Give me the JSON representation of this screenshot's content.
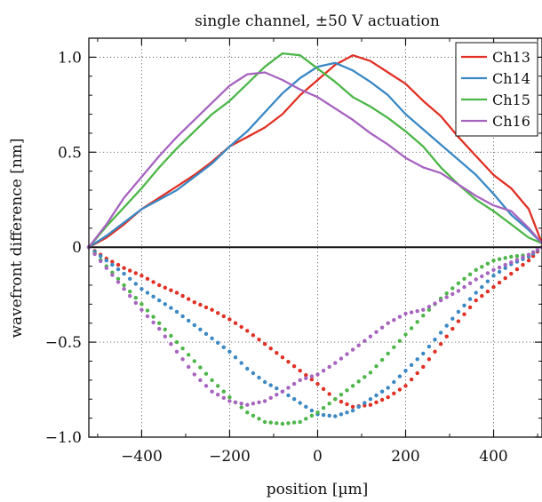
{
  "chart_data": {
    "type": "line",
    "title": "single channel, ±50 V actuation",
    "xlabel": "position [µm]",
    "ylabel": "wavefront difference [nm]",
    "xlim": [
      -520,
      510
    ],
    "ylim": [
      -1.0,
      1.1
    ],
    "xticks": [
      -400,
      -200,
      0,
      200,
      400
    ],
    "xtick_labels": [
      "−400",
      "−200",
      "0",
      "200",
      "400"
    ],
    "yticks": [
      1.0,
      0.5,
      0,
      -0.5,
      -1.0
    ],
    "ytick_labels": [
      "1.0",
      "0.5",
      "0",
      "−0.5",
      "−1.0"
    ],
    "grid": true,
    "legend_position": "top-right",
    "series": [
      {
        "name": "Ch13",
        "color": "#e03024",
        "style": "solid",
        "x": [
          -520,
          -480,
          -440,
          -400,
          -360,
          -320,
          -280,
          -240,
          -200,
          -160,
          -120,
          -80,
          -40,
          0,
          40,
          80,
          120,
          160,
          200,
          240,
          280,
          320,
          360,
          400,
          440,
          480,
          510
        ],
        "y": [
          0,
          0.05,
          0.12,
          0.2,
          0.26,
          0.32,
          0.38,
          0.45,
          0.53,
          0.58,
          0.63,
          0.7,
          0.8,
          0.88,
          0.96,
          1.01,
          0.98,
          0.92,
          0.86,
          0.77,
          0.69,
          0.58,
          0.48,
          0.38,
          0.31,
          0.2,
          0.02
        ]
      },
      {
        "name": "Ch14",
        "color": "#3a88c4",
        "style": "solid",
        "x": [
          -520,
          -480,
          -440,
          -400,
          -360,
          -320,
          -280,
          -240,
          -200,
          -160,
          -120,
          -80,
          -40,
          0,
          40,
          80,
          120,
          160,
          200,
          240,
          280,
          320,
          360,
          400,
          440,
          480,
          510
        ],
        "y": [
          0,
          0.06,
          0.13,
          0.2,
          0.25,
          0.3,
          0.37,
          0.44,
          0.53,
          0.61,
          0.71,
          0.81,
          0.89,
          0.95,
          0.97,
          0.93,
          0.87,
          0.8,
          0.7,
          0.62,
          0.54,
          0.46,
          0.38,
          0.28,
          0.17,
          0.09,
          0.02
        ]
      },
      {
        "name": "Ch15",
        "color": "#4cb648",
        "style": "solid",
        "x": [
          -520,
          -480,
          -440,
          -400,
          -360,
          -320,
          -280,
          -240,
          -200,
          -160,
          -120,
          -80,
          -40,
          0,
          40,
          80,
          120,
          160,
          200,
          240,
          280,
          320,
          360,
          400,
          440,
          480,
          510
        ],
        "y": [
          0,
          0.11,
          0.21,
          0.31,
          0.42,
          0.52,
          0.61,
          0.7,
          0.77,
          0.86,
          0.95,
          1.02,
          1.01,
          0.94,
          0.87,
          0.79,
          0.74,
          0.68,
          0.61,
          0.53,
          0.42,
          0.33,
          0.25,
          0.19,
          0.12,
          0.05,
          0.02
        ]
      },
      {
        "name": "Ch16",
        "color": "#a664bf",
        "style": "solid",
        "x": [
          -520,
          -480,
          -440,
          -400,
          -360,
          -320,
          -280,
          -240,
          -200,
          -160,
          -120,
          -80,
          -40,
          0,
          40,
          80,
          120,
          160,
          200,
          240,
          280,
          320,
          360,
          400,
          440,
          480,
          510
        ],
        "y": [
          0,
          0.12,
          0.26,
          0.37,
          0.48,
          0.58,
          0.67,
          0.76,
          0.85,
          0.91,
          0.92,
          0.88,
          0.83,
          0.79,
          0.73,
          0.67,
          0.6,
          0.54,
          0.47,
          0.42,
          0.39,
          0.33,
          0.27,
          0.22,
          0.19,
          0.1,
          0.02
        ]
      },
      {
        "name": "",
        "color": "#e03024",
        "style": "dotted",
        "x": [
          -520,
          -480,
          -440,
          -400,
          -360,
          -320,
          -280,
          -240,
          -200,
          -160,
          -120,
          -80,
          -40,
          0,
          40,
          80,
          120,
          160,
          200,
          240,
          280,
          320,
          360,
          400,
          440,
          480,
          510
        ],
        "y": [
          0,
          -0.06,
          -0.11,
          -0.15,
          -0.2,
          -0.24,
          -0.29,
          -0.33,
          -0.38,
          -0.44,
          -0.51,
          -0.58,
          -0.65,
          -0.72,
          -0.8,
          -0.84,
          -0.83,
          -0.79,
          -0.73,
          -0.63,
          -0.51,
          -0.39,
          -0.28,
          -0.21,
          -0.14,
          -0.07,
          0
        ]
      },
      {
        "name": "",
        "color": "#3a88c4",
        "style": "dotted",
        "x": [
          -520,
          -480,
          -440,
          -400,
          -360,
          -320,
          -280,
          -240,
          -200,
          -160,
          -120,
          -80,
          -40,
          0,
          40,
          80,
          120,
          160,
          200,
          240,
          280,
          320,
          360,
          400,
          440,
          480,
          510
        ],
        "y": [
          0,
          -0.07,
          -0.14,
          -0.22,
          -0.28,
          -0.34,
          -0.41,
          -0.48,
          -0.55,
          -0.64,
          -0.71,
          -0.76,
          -0.82,
          -0.88,
          -0.89,
          -0.86,
          -0.8,
          -0.74,
          -0.65,
          -0.56,
          -0.45,
          -0.34,
          -0.24,
          -0.15,
          -0.09,
          -0.05,
          0
        ]
      },
      {
        "name": "",
        "color": "#4cb648",
        "style": "dotted",
        "x": [
          -520,
          -480,
          -440,
          -400,
          -360,
          -320,
          -280,
          -240,
          -200,
          -160,
          -120,
          -80,
          -40,
          0,
          40,
          80,
          120,
          160,
          200,
          240,
          280,
          320,
          360,
          400,
          440,
          480,
          510
        ],
        "y": [
          0,
          -0.1,
          -0.2,
          -0.3,
          -0.4,
          -0.5,
          -0.6,
          -0.7,
          -0.79,
          -0.87,
          -0.92,
          -0.93,
          -0.92,
          -0.87,
          -0.8,
          -0.73,
          -0.66,
          -0.56,
          -0.46,
          -0.36,
          -0.27,
          -0.19,
          -0.12,
          -0.07,
          -0.05,
          -0.04,
          0
        ]
      },
      {
        "name": "",
        "color": "#a664bf",
        "style": "dotted",
        "x": [
          -520,
          -480,
          -440,
          -400,
          -360,
          -320,
          -280,
          -240,
          -200,
          -160,
          -120,
          -80,
          -40,
          0,
          40,
          80,
          120,
          160,
          200,
          240,
          280,
          320,
          360,
          400,
          440,
          480,
          510
        ],
        "y": [
          0,
          -0.11,
          -0.22,
          -0.33,
          -0.43,
          -0.55,
          -0.67,
          -0.76,
          -0.81,
          -0.83,
          -0.81,
          -0.76,
          -0.7,
          -0.67,
          -0.61,
          -0.54,
          -0.47,
          -0.4,
          -0.35,
          -0.33,
          -0.28,
          -0.23,
          -0.17,
          -0.12,
          -0.08,
          -0.04,
          0
        ]
      }
    ]
  }
}
